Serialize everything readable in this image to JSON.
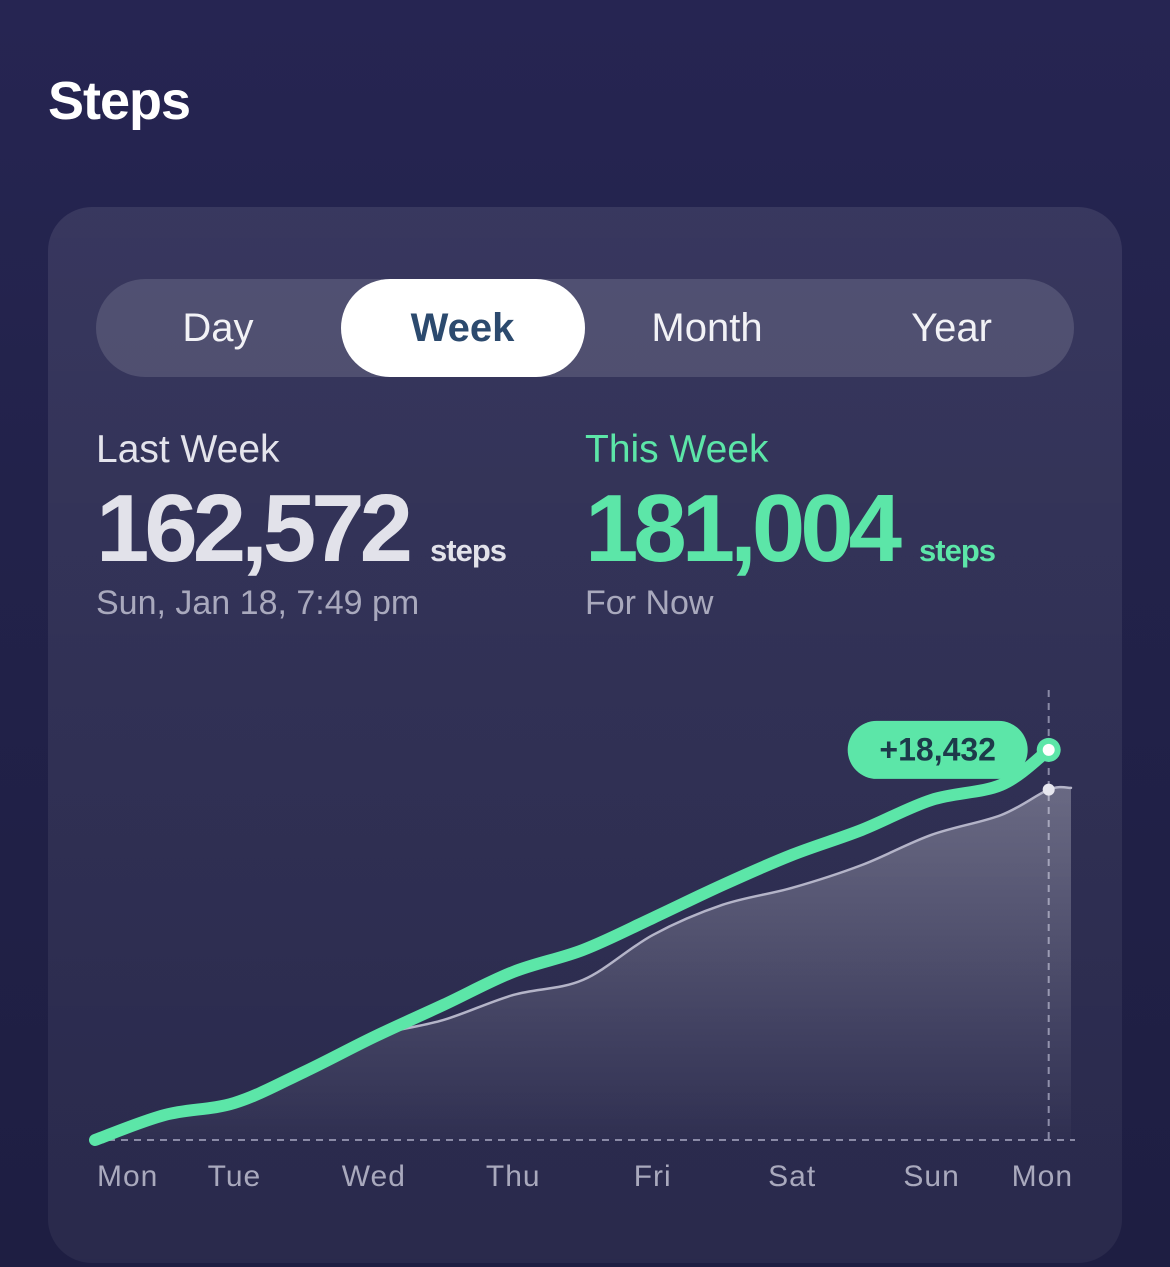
{
  "header": {
    "title": "Steps"
  },
  "tabs": [
    "Day",
    "Week",
    "Month",
    "Year"
  ],
  "selected_tab": 1,
  "summary": {
    "last": {
      "label": "Last Week",
      "value": "162,572",
      "unit": "steps",
      "note": "Sun, Jan 18, 7:49 pm"
    },
    "this": {
      "label": "This Week",
      "value": "181,004",
      "unit": "steps",
      "note": "For Now"
    }
  },
  "chart_data": {
    "type": "line",
    "x": [
      0,
      0.5,
      1,
      1.5,
      2,
      2.5,
      3,
      3.5,
      4,
      4.5,
      5,
      5.5,
      6,
      6.5,
      6.84,
      7
    ],
    "series": [
      {
        "color": "#5ce6a8",
        "values": [
          0,
          11600,
          17200,
          31600,
          47800,
          62700,
          78000,
          88200,
          103000,
          118300,
          132300,
          143900,
          157800,
          164800,
          181004,
          null
        ]
      },
      {
        "color": "#b4b4c8",
        "area": true,
        "values": [
          0,
          11600,
          17200,
          31600,
          47800,
          55700,
          67300,
          74300,
          95100,
          109100,
          117000,
          127600,
          141600,
          150800,
          162572,
          163400
        ]
      }
    ],
    "annotation": "+18,432",
    "xlim": [
      0,
      7
    ],
    "ylim": [
      0,
      208800
    ],
    "xticks": [
      {
        "value": 0,
        "label": "Mon"
      },
      {
        "value": 1,
        "label": "Tue"
      },
      {
        "value": 2,
        "label": "Wed"
      },
      {
        "value": 3,
        "label": "Thu"
      },
      {
        "value": 4,
        "label": "Fri"
      },
      {
        "value": 5,
        "label": "Sat"
      },
      {
        "value": 6,
        "label": "Sun"
      },
      {
        "value": 7,
        "label": "Mon"
      }
    ]
  }
}
